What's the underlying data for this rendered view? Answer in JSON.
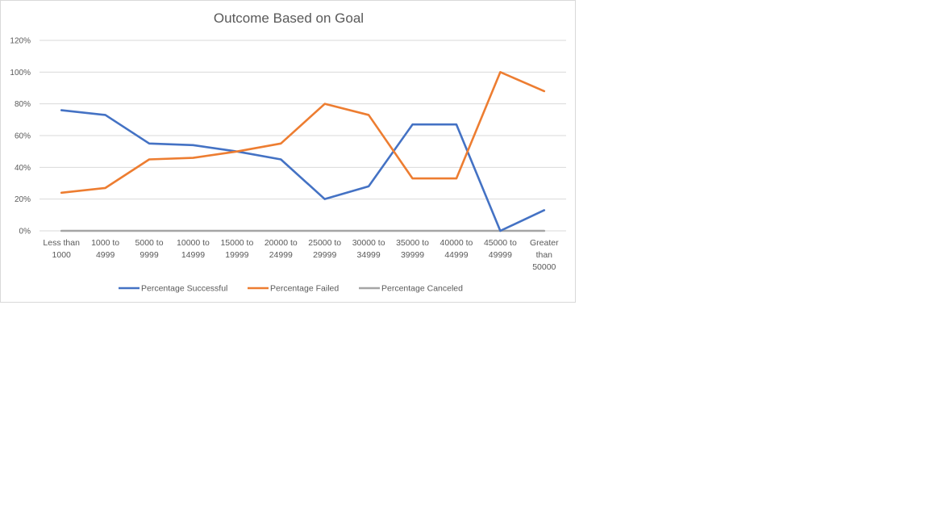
{
  "chart_data": {
    "type": "line",
    "title": "Outcome Based on Goal",
    "xlabel": "",
    "ylabel": "",
    "ylim": [
      0,
      1.2
    ],
    "y_ticks": [
      "0%",
      "20%",
      "40%",
      "60%",
      "80%",
      "100%",
      "120%"
    ],
    "grid": true,
    "legend_position": "bottom",
    "categories": [
      "Less than 1000",
      "1000 to 4999",
      "5000 to 9999",
      "10000 to 14999",
      "15000 to 19999",
      "20000 to 24999",
      "25000 to 29999",
      "30000 to 34999",
      "35000 to 39999",
      "40000 to 44999",
      "45000 to 49999",
      "Greater than 50000"
    ],
    "category_lines": [
      [
        "Less than",
        "1000"
      ],
      [
        "1000 to",
        "4999"
      ],
      [
        "5000 to",
        "9999"
      ],
      [
        "10000 to",
        "14999"
      ],
      [
        "15000 to",
        "19999"
      ],
      [
        "20000 to",
        "24999"
      ],
      [
        "25000 to",
        "29999"
      ],
      [
        "30000 to",
        "34999"
      ],
      [
        "35000 to",
        "39999"
      ],
      [
        "40000 to",
        "44999"
      ],
      [
        "45000 to",
        "49999"
      ],
      [
        "Greater",
        "than",
        "50000"
      ]
    ],
    "series": [
      {
        "name": "Percentage Successful",
        "color": "#4472c4",
        "values": [
          0.76,
          0.73,
          0.55,
          0.54,
          0.5,
          0.45,
          0.2,
          0.28,
          0.67,
          0.67,
          0.0,
          0.13
        ]
      },
      {
        "name": "Percentage Failed",
        "color": "#ed7d31",
        "values": [
          0.24,
          0.27,
          0.45,
          0.46,
          0.5,
          0.55,
          0.8,
          0.73,
          0.33,
          0.33,
          1.0,
          0.88
        ]
      },
      {
        "name": "Percentage Canceled",
        "color": "#a5a5a5",
        "values": [
          0,
          0,
          0,
          0,
          0,
          0,
          0,
          0,
          0,
          0,
          0,
          0
        ]
      }
    ]
  }
}
